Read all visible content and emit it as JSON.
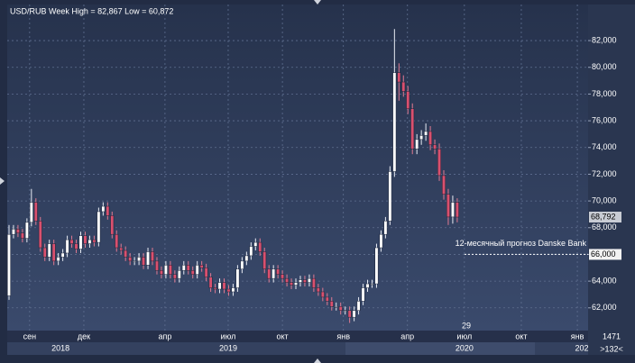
{
  "chart_data": {
    "type": "candlestick",
    "title": "USD/RUB Week High = 82,867 Low = 60,872",
    "x": [
      0,
      1,
      2,
      3,
      4,
      5,
      6,
      7,
      8,
      9,
      10,
      11,
      12,
      13,
      14,
      15,
      16,
      17,
      18,
      19,
      20,
      21,
      22,
      23,
      24,
      25,
      26,
      27,
      28,
      29,
      30,
      31,
      32,
      33,
      34,
      35,
      36,
      37,
      38,
      39,
      40,
      41,
      42,
      43,
      44,
      45,
      46,
      47,
      48,
      49,
      50,
      51,
      52,
      53,
      54,
      55,
      56,
      57,
      58,
      59,
      60,
      61,
      62,
      63,
      64,
      65,
      66,
      67,
      68,
      69,
      70,
      71,
      72,
      73,
      74,
      75,
      76,
      77,
      78,
      79,
      80,
      81,
      82,
      83,
      84,
      85,
      86,
      87,
      88,
      89,
      90,
      91,
      92,
      93,
      94,
      95,
      96,
      97,
      98,
      99,
      100
    ],
    "open": [
      62900,
      67500,
      67900,
      67600,
      67200,
      68400,
      69900,
      68500,
      66500,
      65800,
      66800,
      65500,
      65800,
      66100,
      67100,
      66800,
      66400,
      67400,
      66800,
      67100,
      66900,
      69200,
      69600,
      68900,
      67500,
      66500,
      66300,
      65800,
      65500,
      65500,
      65800,
      65200,
      66200,
      65500,
      64800,
      64500,
      65200,
      64500,
      64200,
      64800,
      65200,
      64800,
      64500,
      65200,
      65000,
      64300,
      63500,
      63400,
      63900,
      63400,
      63200,
      63500,
      64900,
      65500,
      65900,
      66600,
      66900,
      66200,
      64900,
      64200,
      64900,
      64500,
      64200,
      63900,
      63700,
      63900,
      64100,
      63900,
      64200,
      63500,
      63200,
      62800,
      62500,
      62100,
      62100,
      61800,
      61800,
      61300,
      61800,
      62500,
      63500,
      63800,
      63800,
      66500,
      67500,
      68500,
      72200,
      79600,
      78900,
      78200,
      76900,
      73900,
      74600,
      74900,
      75200,
      74200,
      73900,
      71900,
      70500,
      68800,
      69900
    ],
    "high": [
      68200,
      68200,
      68200,
      67900,
      68700,
      70900,
      70200,
      68800,
      66800,
      67100,
      67100,
      66100,
      66400,
      67400,
      67400,
      67100,
      67700,
      67700,
      67400,
      67400,
      69500,
      69900,
      69900,
      69200,
      67800,
      66800,
      66600,
      66100,
      65800,
      66100,
      66100,
      66500,
      66500,
      65800,
      65100,
      65500,
      65500,
      64800,
      65100,
      65500,
      65500,
      65100,
      65500,
      65500,
      65300,
      64600,
      63800,
      64200,
      64200,
      63700,
      63800,
      65200,
      65800,
      66200,
      66900,
      67200,
      67200,
      66500,
      65200,
      65200,
      65200,
      64800,
      64500,
      64200,
      64200,
      64400,
      64400,
      64500,
      64500,
      63800,
      63500,
      63100,
      62800,
      62400,
      62400,
      62100,
      62100,
      62100,
      62800,
      63800,
      64100,
      64100,
      66800,
      67800,
      68800,
      72600,
      82867,
      80300,
      79400,
      78600,
      77300,
      75000,
      75300,
      75800,
      75600,
      74600,
      74300,
      72300,
      70900,
      70400,
      70200
    ],
    "low": [
      62600,
      67200,
      67300,
      66900,
      66900,
      68100,
      68200,
      66200,
      65500,
      65500,
      65200,
      65200,
      65500,
      65800,
      66500,
      66100,
      66100,
      66500,
      66500,
      66600,
      66600,
      68900,
      68600,
      67200,
      66200,
      66000,
      65500,
      65200,
      65200,
      65200,
      64900,
      64900,
      65200,
      64500,
      64200,
      64200,
      64200,
      63900,
      63900,
      64500,
      64500,
      64200,
      64200,
      64700,
      64000,
      63200,
      63100,
      63100,
      63100,
      62900,
      62900,
      63200,
      64600,
      65200,
      65600,
      66300,
      65900,
      64600,
      63900,
      63900,
      64200,
      63900,
      63600,
      63400,
      63400,
      63600,
      63600,
      63600,
      63200,
      62900,
      62500,
      62200,
      61800,
      61800,
      61500,
      61500,
      60872,
      61000,
      61500,
      62200,
      63200,
      63500,
      63500,
      66200,
      67200,
      68200,
      71800,
      77500,
      77800,
      76500,
      73500,
      73500,
      74200,
      74500,
      73800,
      73500,
      71500,
      70100,
      68200,
      68300,
      68400
    ],
    "close": [
      67500,
      67900,
      67600,
      67200,
      68400,
      69900,
      68500,
      66500,
      65800,
      66800,
      65500,
      65800,
      66100,
      67100,
      66800,
      66400,
      67400,
      66800,
      67100,
      66900,
      69200,
      69600,
      68900,
      67500,
      66500,
      66300,
      65800,
      65500,
      65500,
      65800,
      65200,
      66200,
      65500,
      64800,
      64500,
      65200,
      64500,
      64200,
      64800,
      65200,
      64800,
      64500,
      65200,
      65000,
      64300,
      63500,
      63400,
      63900,
      63400,
      63200,
      63500,
      64900,
      65500,
      65900,
      66600,
      66900,
      66200,
      64900,
      64200,
      64900,
      64500,
      64200,
      63900,
      63700,
      63900,
      64100,
      63900,
      64200,
      63500,
      63200,
      62800,
      62500,
      62100,
      62100,
      61800,
      61800,
      61300,
      61800,
      62500,
      63500,
      63800,
      63800,
      66500,
      67500,
      68500,
      72200,
      79600,
      78900,
      78200,
      76900,
      73900,
      74600,
      74900,
      75200,
      74200,
      73900,
      71900,
      70500,
      68800,
      69900,
      68792
    ],
    "up_color": "#ffffff",
    "down_color": "#d9506e",
    "xlim": [
      -0.4,
      129.2
    ],
    "xticks": [
      {
        "value": 4.6,
        "label": "сен"
      },
      {
        "value": 16.7,
        "label": "дек"
      },
      {
        "value": 34.8,
        "label": "апр"
      },
      {
        "value": 48.9,
        "label": "июл"
      },
      {
        "value": 61,
        "label": "окт"
      },
      {
        "value": 74.6,
        "label": "янв"
      },
      {
        "value": 88.9,
        "label": "апр"
      },
      {
        "value": 101.6,
        "label": "июл"
      },
      {
        "value": 114.3,
        "label": "окт"
      },
      {
        "value": 126.8,
        "label": "янв"
      }
    ],
    "years": [
      {
        "value": 11.5,
        "label": "2018"
      },
      {
        "value": 48.9,
        "label": "2019"
      },
      {
        "value": 101.6,
        "label": "2020"
      },
      {
        "value": 127.8,
        "label": "202"
      }
    ],
    "ylim": [
      60300,
      84700
    ],
    "yticks": [
      {
        "value": 62000,
        "label": "62,000"
      },
      {
        "value": 64000,
        "label": "64,000"
      },
      {
        "value": 66000,
        "label": "66,000"
      },
      {
        "value": 68000,
        "label": "68,000"
      },
      {
        "value": 70000,
        "label": "70,000"
      },
      {
        "value": 72000,
        "label": "72,000"
      },
      {
        "value": 74000,
        "label": "74,000"
      },
      {
        "value": 76000,
        "label": "76,000"
      },
      {
        "value": 78000,
        "label": "78,000"
      },
      {
        "value": 80000,
        "label": "80,000"
      },
      {
        "value": 82000,
        "label": "82,000"
      }
    ],
    "grid": true,
    "last_label": "68,792",
    "forecast": {
      "value": 66000,
      "label": "66,000",
      "text": "12-месячный прогноз Danske Bank"
    },
    "day_label": "29",
    "counter": "1471",
    "zoom": ">132<"
  }
}
